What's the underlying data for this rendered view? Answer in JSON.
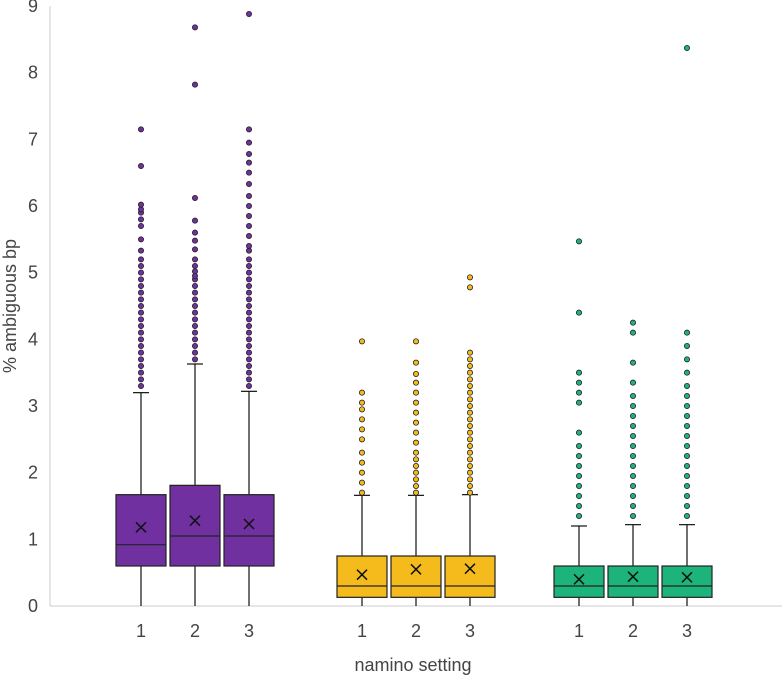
{
  "chart_data": {
    "type": "box",
    "xlabel": "namino setting",
    "ylabel": "% ambiguous bp",
    "ylim": [
      0,
      9
    ],
    "yticks": [
      0,
      1,
      2,
      3,
      4,
      5,
      6,
      7,
      8,
      9
    ],
    "grid": false,
    "legend": "none",
    "groups": [
      {
        "color": "#7030a0",
        "boxes": [
          {
            "label": "1",
            "min": 0,
            "q1": 0.6,
            "median": 0.92,
            "q3": 1.67,
            "max": 3.2,
            "mean": 1.18,
            "outliers": [
              3.3,
              3.4,
              3.5,
              3.6,
              3.7,
              3.8,
              3.9,
              4.0,
              4.1,
              4.2,
              4.3,
              4.4,
              4.5,
              4.6,
              4.7,
              4.8,
              4.9,
              5.0,
              5.1,
              5.2,
              5.33,
              5.5,
              5.7,
              5.8,
              5.9,
              5.95,
              6.02,
              6.6,
              7.15
            ]
          },
          {
            "label": "2",
            "min": 0,
            "q1": 0.6,
            "median": 1.05,
            "q3": 1.81,
            "max": 3.63,
            "mean": 1.28,
            "outliers": [
              3.7,
              3.8,
              3.9,
              4.0,
              4.1,
              4.2,
              4.3,
              4.4,
              4.5,
              4.6,
              4.7,
              4.8,
              4.9,
              4.95,
              5.02,
              5.1,
              5.2,
              5.35,
              5.48,
              5.6,
              5.78,
              6.12,
              7.82,
              8.68
            ]
          },
          {
            "label": "3",
            "min": 0,
            "q1": 0.6,
            "median": 1.05,
            "q3": 1.67,
            "max": 3.22,
            "mean": 1.23,
            "outliers": [
              3.3,
              3.4,
              3.5,
              3.6,
              3.7,
              3.8,
              3.9,
              4.0,
              4.1,
              4.2,
              4.3,
              4.4,
              4.5,
              4.6,
              4.7,
              4.8,
              4.9,
              5.0,
              5.1,
              5.2,
              5.33,
              5.4,
              5.55,
              5.7,
              5.85,
              6.0,
              6.15,
              6.33,
              6.5,
              6.65,
              6.78,
              6.95,
              7.15,
              8.88
            ]
          }
        ]
      },
      {
        "color": "#f5bb1c",
        "boxes": [
          {
            "label": "1",
            "min": 0,
            "q1": 0.13,
            "median": 0.3,
            "q3": 0.75,
            "max": 1.66,
            "mean": 0.47,
            "outliers": [
              1.7,
              1.85,
              2.0,
              2.15,
              2.3,
              2.5,
              2.65,
              2.8,
              2.95,
              3.05,
              3.2,
              3.97
            ]
          },
          {
            "label": "2",
            "min": 0,
            "q1": 0.13,
            "median": 0.3,
            "q3": 0.75,
            "max": 1.66,
            "mean": 0.55,
            "outliers": [
              1.7,
              1.8,
              1.9,
              2.0,
              2.1,
              2.2,
              2.3,
              2.45,
              2.6,
              2.75,
              2.9,
              3.05,
              3.2,
              3.35,
              3.48,
              3.65,
              3.97
            ]
          },
          {
            "label": "3",
            "min": 0,
            "q1": 0.13,
            "median": 0.3,
            "q3": 0.75,
            "max": 1.67,
            "mean": 0.56,
            "outliers": [
              1.7,
              1.8,
              1.9,
              2.0,
              2.1,
              2.2,
              2.3,
              2.4,
              2.5,
              2.6,
              2.7,
              2.8,
              2.9,
              3.0,
              3.1,
              3.2,
              3.3,
              3.4,
              3.5,
              3.6,
              3.7,
              3.8,
              4.78,
              4.93
            ]
          }
        ]
      },
      {
        "color": "#1db47c",
        "boxes": [
          {
            "label": "1",
            "min": 0,
            "q1": 0.13,
            "median": 0.3,
            "q3": 0.6,
            "max": 1.2,
            "mean": 0.4,
            "outliers": [
              1.35,
              1.5,
              1.65,
              1.8,
              1.95,
              2.1,
              2.25,
              2.4,
              2.6,
              3.05,
              3.2,
              3.35,
              3.5,
              4.4,
              5.47
            ]
          },
          {
            "label": "2",
            "min": 0,
            "q1": 0.13,
            "median": 0.3,
            "q3": 0.6,
            "max": 1.22,
            "mean": 0.44,
            "outliers": [
              1.35,
              1.5,
              1.65,
              1.8,
              1.95,
              2.1,
              2.25,
              2.4,
              2.55,
              2.7,
              2.85,
              3.0,
              3.15,
              3.35,
              3.65,
              4.1,
              4.25
            ]
          },
          {
            "label": "3",
            "min": 0,
            "q1": 0.13,
            "median": 0.3,
            "q3": 0.6,
            "max": 1.22,
            "mean": 0.43,
            "outliers": [
              1.35,
              1.5,
              1.65,
              1.8,
              1.95,
              2.1,
              2.25,
              2.4,
              2.55,
              2.7,
              2.85,
              3.0,
              3.15,
              3.3,
              3.5,
              3.7,
              3.9,
              4.1,
              8.37
            ]
          }
        ]
      }
    ]
  }
}
